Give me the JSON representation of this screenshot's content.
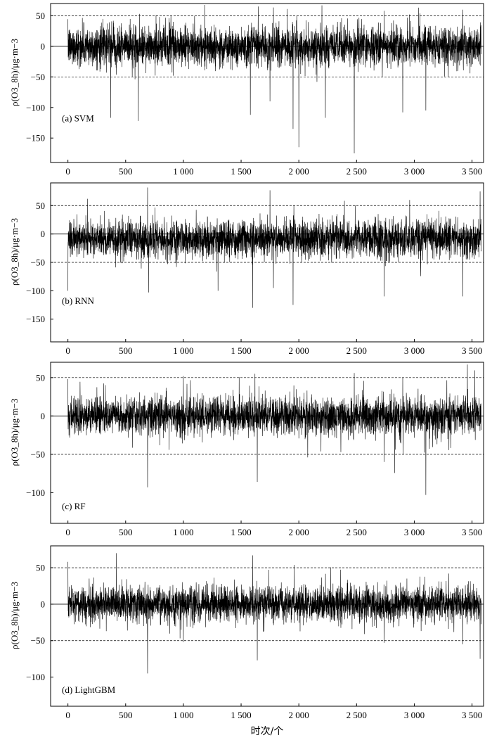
{
  "chart_data": [
    {
      "type": "line",
      "panel_label": "(a) SVM",
      "ylabel": "ρ(O3_8h)/μg·m−3",
      "xlabel": "",
      "xlim": [
        -150,
        3600
      ],
      "ylim": [
        -190,
        70
      ],
      "xticks": [
        0,
        500,
        1000,
        1500,
        2000,
        2500,
        3000,
        3500
      ],
      "xtick_labels": [
        "0",
        "500",
        "1 000",
        "1 500",
        "2 000",
        "2 500",
        "3 000",
        "3 500"
      ],
      "yticks": [
        50,
        0,
        -50,
        -100,
        -150
      ],
      "ytick_labels": [
        "50",
        "0",
        "−50",
        "−100",
        "−150"
      ],
      "reference_lines": [
        50,
        0,
        -50
      ],
      "n_points": 3580,
      "noise_sd": 16,
      "spikes": [
        [
          1950,
          -135
        ],
        [
          2000,
          -165
        ],
        [
          2480,
          -175
        ],
        [
          610,
          -122
        ],
        [
          370,
          -117
        ],
        [
          1580,
          -112
        ],
        [
          2230,
          -117
        ],
        [
          2900,
          -108
        ],
        [
          3100,
          -105
        ],
        [
          1750,
          -90
        ],
        [
          2200,
          67
        ],
        [
          3420,
          60
        ],
        [
          2740,
          58
        ],
        [
          620,
          53
        ],
        [
          3050,
          54
        ],
        [
          2940,
          47
        ]
      ]
    },
    {
      "type": "line",
      "panel_label": "(b) RNN",
      "ylabel": "ρ(O3_8h)/μg·m−3",
      "xlabel": "",
      "xlim": [
        -150,
        3600
      ],
      "ylim": [
        -190,
        90
      ],
      "xticks": [
        0,
        500,
        1000,
        1500,
        2000,
        2500,
        3000,
        3500
      ],
      "xtick_labels": [
        "0",
        "500",
        "1 000",
        "1 500",
        "2 000",
        "2 500",
        "3 000",
        "3 500"
      ],
      "yticks": [
        50,
        0,
        -50,
        -100,
        -150
      ],
      "ytick_labels": [
        "50",
        "0",
        "−50",
        "−100",
        "−150"
      ],
      "reference_lines": [
        50,
        0,
        -50
      ],
      "n_points": 3580,
      "noise_sd": 16,
      "spikes": [
        [
          690,
          82
        ],
        [
          3420,
          82
        ],
        [
          1750,
          77
        ],
        [
          3570,
          75
        ],
        [
          2740,
          66
        ],
        [
          170,
          62
        ],
        [
          2960,
          60
        ],
        [
          1600,
          -130
        ],
        [
          1950,
          -125
        ],
        [
          1780,
          -95
        ],
        [
          700,
          -103
        ],
        [
          2740,
          -110
        ],
        [
          3420,
          -110
        ],
        [
          0,
          -100
        ],
        [
          1300,
          -100
        ]
      ]
    },
    {
      "type": "line",
      "panel_label": "(c) RF",
      "ylabel": "ρ(O3_8h)/μg·m−3",
      "xlabel": "",
      "xlim": [
        -150,
        3600
      ],
      "ylim": [
        -140,
        70
      ],
      "xticks": [
        0,
        500,
        1000,
        1500,
        2000,
        2500,
        3000,
        3500
      ],
      "xtick_labels": [
        "0",
        "500",
        "1 000",
        "1 500",
        "2 000",
        "2 500",
        "3 000",
        "3 500"
      ],
      "yticks": [
        50,
        0,
        -50,
        -100
      ],
      "ytick_labels": [
        "50",
        "0",
        "−50",
        "−100"
      ],
      "reference_lines": [
        50,
        0,
        -50
      ],
      "n_points": 3580,
      "noise_sd": 12,
      "spikes": [
        [
          3460,
          67
        ],
        [
          1620,
          55
        ],
        [
          2480,
          56
        ],
        [
          1000,
          52
        ],
        [
          690,
          -93
        ],
        [
          3100,
          -103
        ],
        [
          1640,
          -86
        ],
        [
          2740,
          -60
        ],
        [
          0,
          48
        ],
        [
          2900,
          50
        ]
      ]
    },
    {
      "type": "line",
      "panel_label": "(d) LightGBM",
      "ylabel": "ρ(O3_8h)/μg·m−3",
      "xlabel": "时次/个",
      "xlim": [
        -150,
        3600
      ],
      "ylim": [
        -140,
        80
      ],
      "xticks": [
        0,
        500,
        1000,
        1500,
        2000,
        2500,
        3000,
        3500
      ],
      "xtick_labels": [
        "0",
        "500",
        "1 000",
        "1 500",
        "2 000",
        "2 500",
        "3 000",
        "3 500"
      ],
      "yticks": [
        50,
        0,
        -50,
        -100
      ],
      "ytick_labels": [
        "50",
        "0",
        "−50",
        "−100"
      ],
      "reference_lines": [
        50,
        0,
        -50
      ],
      "n_points": 3580,
      "noise_sd": 12,
      "spikes": [
        [
          420,
          70
        ],
        [
          1600,
          67
        ],
        [
          0,
          58
        ],
        [
          1960,
          54
        ],
        [
          690,
          -95
        ],
        [
          1640,
          -77
        ],
        [
          3570,
          -75
        ],
        [
          2740,
          -53
        ],
        [
          3420,
          -55
        ],
        [
          1000,
          -52
        ]
      ]
    }
  ]
}
